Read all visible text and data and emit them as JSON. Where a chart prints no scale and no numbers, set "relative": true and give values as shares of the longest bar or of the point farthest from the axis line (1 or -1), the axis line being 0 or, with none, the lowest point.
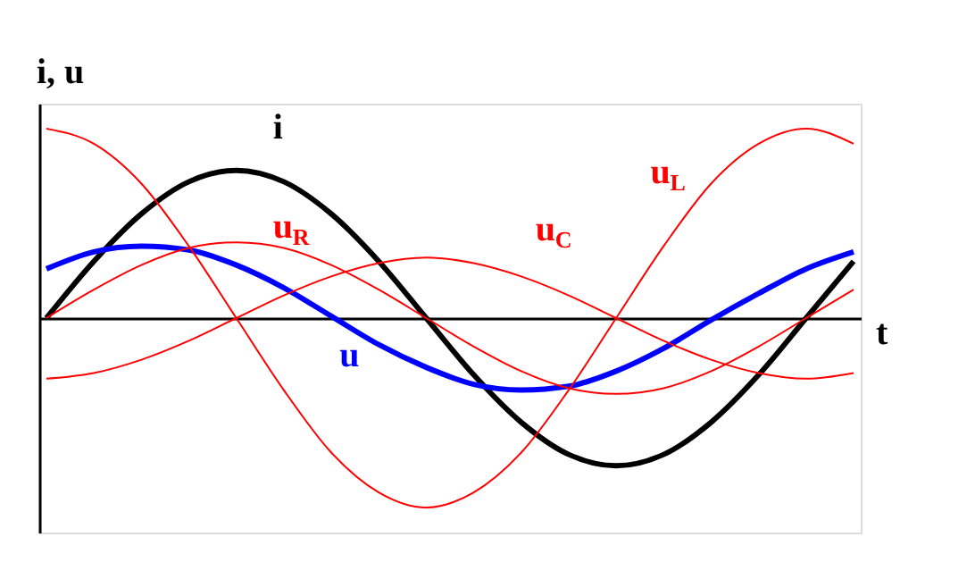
{
  "chart_data": {
    "type": "line",
    "relative": true,
    "xlabel": "t",
    "ylabel": "i, u",
    "legend": false,
    "grid": false,
    "tick_labels": false,
    "categories": [
      null,
      null,
      null,
      null,
      null,
      null,
      null,
      null,
      null,
      null,
      null,
      null,
      null,
      null,
      null,
      null,
      null,
      null
    ],
    "series": [
      {
        "name": "i",
        "color": "#000000",
        "values": [
          0,
          0.3,
          0.55,
          0.72,
          0.78,
          0.72,
          0.55,
          0.3,
          0,
          -0.3,
          -0.55,
          -0.72,
          -0.78,
          -0.72,
          -0.55,
          -0.3,
          0,
          0.3
        ]
      },
      {
        "name": "u",
        "color": "#0000ff",
        "values": [
          0.26,
          0.35,
          0.38,
          0.36,
          0.28,
          0.16,
          0.01,
          -0.14,
          -0.26,
          -0.35,
          -0.38,
          -0.36,
          -0.28,
          -0.16,
          -0.01,
          0.13,
          0.26,
          0.35
        ]
      },
      {
        "name": "u$_{R}$",
        "color": "#ff0000",
        "values": [
          0,
          0.15,
          0.28,
          0.37,
          0.4,
          0.37,
          0.28,
          0.15,
          0,
          -0.15,
          -0.28,
          -0.37,
          -0.4,
          -0.37,
          -0.28,
          -0.15,
          0,
          0.15
        ]
      },
      {
        "name": "u$_{C}$",
        "color": "#ff0000",
        "values": [
          -0.32,
          -0.29,
          -0.22,
          -0.12,
          0,
          0.12,
          0.22,
          0.29,
          0.32,
          0.29,
          0.22,
          0.12,
          0,
          -0.12,
          -0.22,
          -0.29,
          -0.32,
          -0.29
        ]
      },
      {
        "name": "u$_{L}$",
        "color": "#ff0000",
        "values": [
          1,
          0.92,
          0.71,
          0.38,
          0,
          -0.38,
          -0.71,
          -0.92,
          -1,
          -0.92,
          -0.71,
          -0.38,
          0,
          0.38,
          0.71,
          0.92,
          1,
          0.92
        ]
      }
    ]
  }
}
